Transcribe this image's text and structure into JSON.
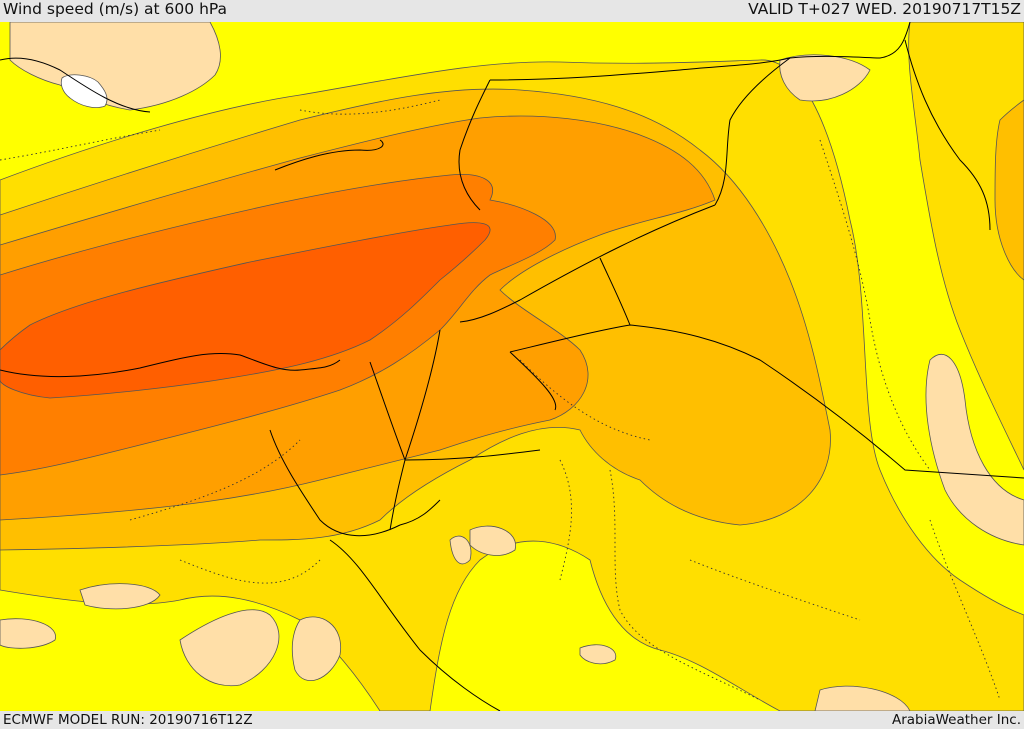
{
  "header": {
    "title": "Wind speed (m/s) at 600 hPa",
    "valid": "VALID T+027 WED. 20190717T15Z"
  },
  "footer": {
    "model_run": "ECMWF MODEL RUN: 20190716T12Z",
    "credit": "ArabiaWeather Inc."
  },
  "colors": {
    "band_lowest": "#ffdfa8",
    "band_1": "#ffff00",
    "band_2": "#ffdf00",
    "band_3": "#ffbf00",
    "band_4": "#ff9f00",
    "band_5": "#ff7f00",
    "band_6": "#ff5f00",
    "contour": "#555555",
    "border": "#000000",
    "sea_ice": "#ffffff"
  }
}
